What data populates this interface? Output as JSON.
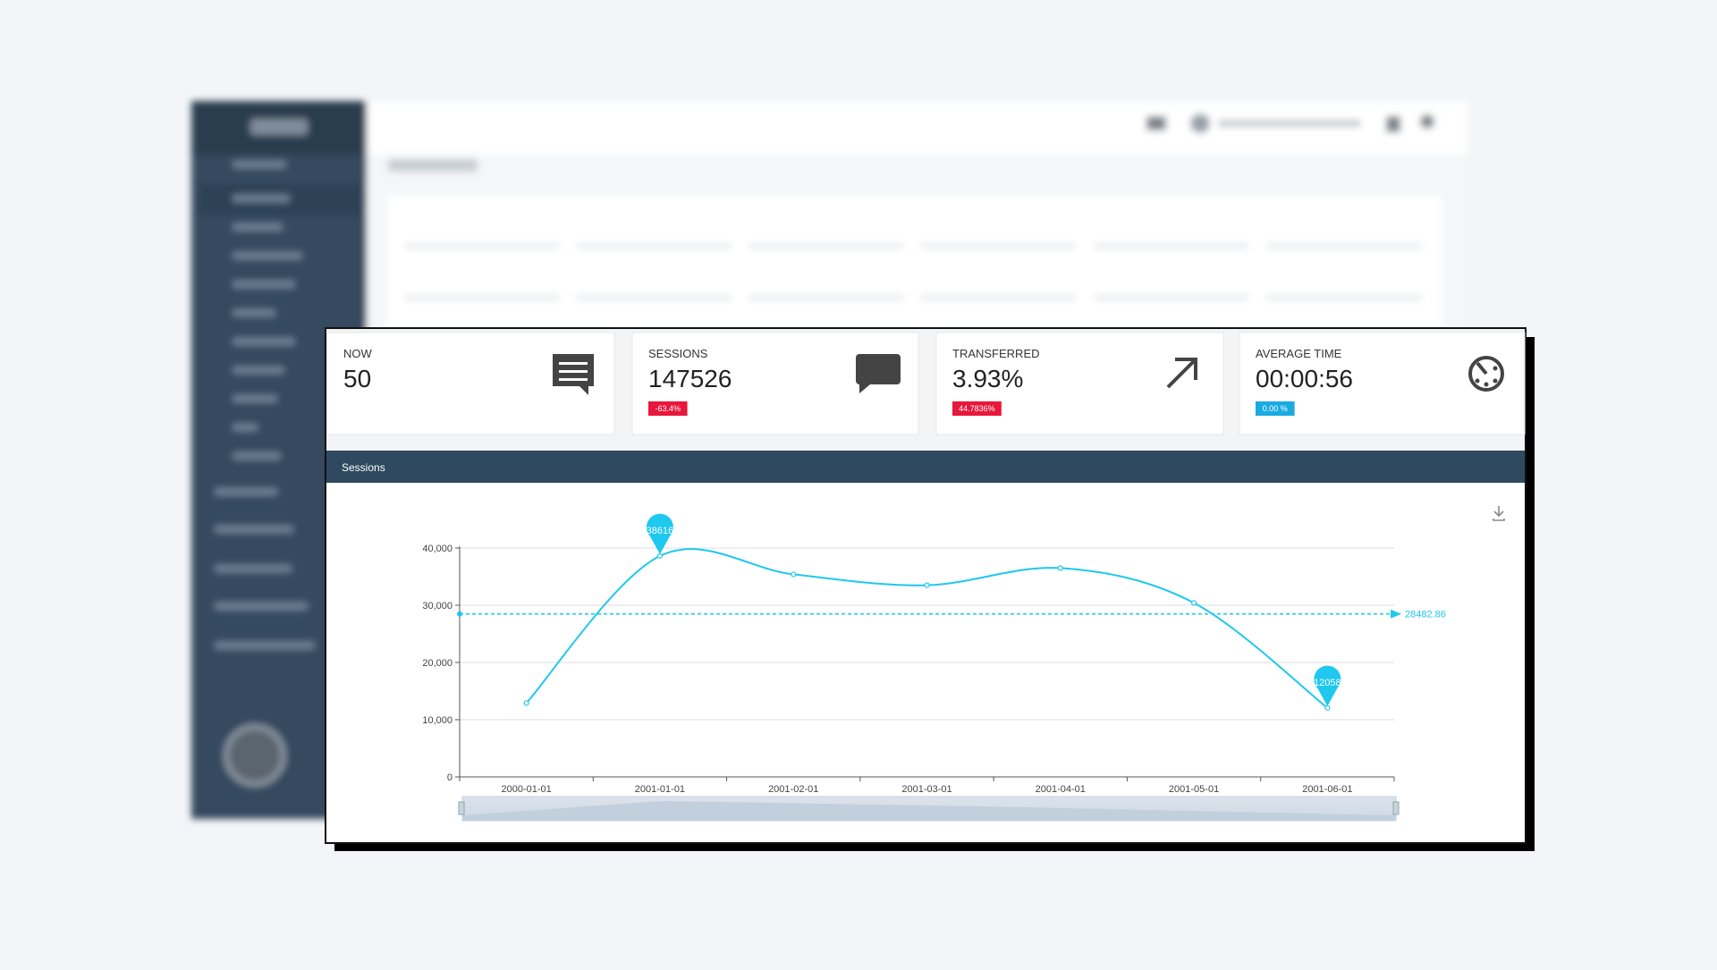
{
  "kpis": [
    {
      "label": "NOW",
      "value": "50"
    },
    {
      "label": "SESSIONS",
      "value": "147526",
      "change": "-63.4%",
      "change_color": "#e8173c"
    },
    {
      "label": "TRANSFERRED",
      "value": "3.93%",
      "change": "44.7836%",
      "change_color": "#e8173c"
    },
    {
      "label": "AVERAGE TIME",
      "value": "00:00:56",
      "change": "0.00 %",
      "change_color": "#1aabe0"
    }
  ],
  "chart_data": {
    "type": "line",
    "title": "Sessions",
    "categories": [
      "2000-01-01",
      "2001-01-01",
      "2001-02-01",
      "2001-03-01",
      "2001-04-01",
      "2001-05-01",
      "2001-06-01"
    ],
    "series": [
      {
        "name": "Sessions",
        "color": "#1ec8ef",
        "values": [
          12900,
          38616,
          35400,
          33500,
          36500,
          30406,
          12058
        ]
      }
    ],
    "average": 28482.86,
    "ylim": [
      0,
      40000
    ],
    "yticks": [
      0,
      {
        "value": 10000,
        "label": "10,000"
      },
      {
        "value": 20000,
        "label": "20,000"
      },
      {
        "value": 30000,
        "label": "30,000"
      },
      {
        "value": 40000,
        "label": "40,000"
      }
    ],
    "grid": true
  }
}
